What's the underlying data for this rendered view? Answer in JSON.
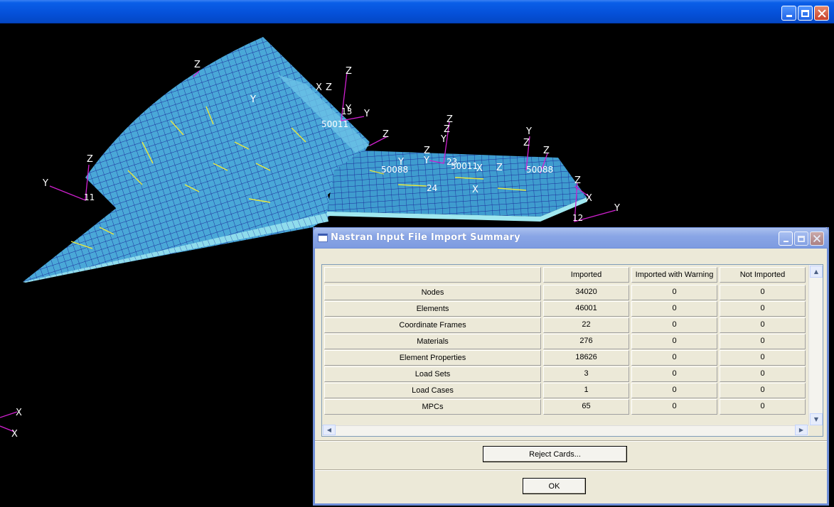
{
  "main_window": {
    "controls": [
      "minimize-icon",
      "maximize-icon",
      "close-icon"
    ]
  },
  "viewport": {
    "axis_labels": {
      "z": "Z",
      "y": "Y",
      "x": "X"
    },
    "node_labels": [
      "11",
      "13",
      "12",
      "23",
      "24",
      "50011",
      "50011",
      "50088",
      "50088"
    ],
    "colors": {
      "mesh_fill": "#4aa8d8",
      "mesh_line": "#1a2a9a",
      "edge": "#9fe8f0",
      "axis": "#d020d0",
      "highlight": "#e8e840"
    }
  },
  "dialog": {
    "title": "Nastran Input File Import Summary",
    "table": {
      "columns": [
        "Imported",
        "Imported with Warning",
        "Not Imported"
      ],
      "rows": [
        {
          "label": "Nodes",
          "imported": "34020",
          "warning": "0",
          "not_imported": "0"
        },
        {
          "label": "Elements",
          "imported": "46001",
          "warning": "0",
          "not_imported": "0"
        },
        {
          "label": "Coordinate Frames",
          "imported": "22",
          "warning": "0",
          "not_imported": "0"
        },
        {
          "label": "Materials",
          "imported": "276",
          "warning": "0",
          "not_imported": "0"
        },
        {
          "label": "Element Properties",
          "imported": "18626",
          "warning": "0",
          "not_imported": "0"
        },
        {
          "label": "Load Sets",
          "imported": "3",
          "warning": "0",
          "not_imported": "0"
        },
        {
          "label": "Load Cases",
          "imported": "1",
          "warning": "0",
          "not_imported": "0"
        },
        {
          "label": "MPCs",
          "imported": "65",
          "warning": "0",
          "not_imported": "0"
        }
      ]
    },
    "reject_button": "Reject Cards...",
    "ok_button": "OK"
  }
}
